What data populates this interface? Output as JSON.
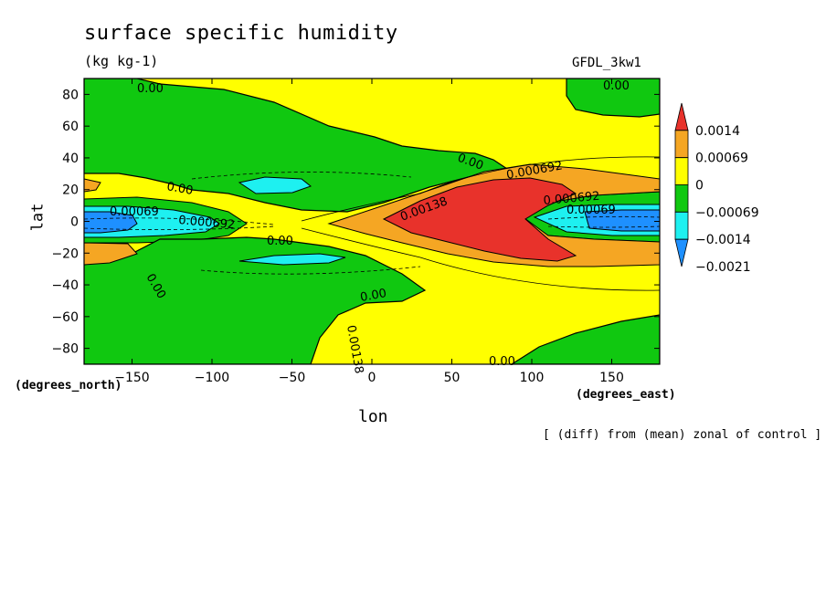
{
  "chart_data": {
    "type": "heatmap",
    "title": "surface specific humidity",
    "units": "(kg kg-1)",
    "model": "GFDL_3kw1",
    "xlabel": "lon",
    "ylabel": "lat",
    "x_units": "(degrees_east)",
    "y_units": "(degrees_north)",
    "note": "[ (diff) from (mean) zonal of control ]",
    "xlim": [
      -180,
      180
    ],
    "ylim": [
      -90,
      90
    ],
    "x_ticks": [
      -150,
      -100,
      -50,
      0,
      50,
      100,
      150
    ],
    "y_ticks": [
      -80,
      -60,
      -40,
      -20,
      0,
      20,
      40,
      60,
      80
    ],
    "grid": false,
    "legend_position": "right",
    "colorbar": {
      "levels": [
        "0.0014",
        "0.00069",
        "0",
        "-0.00069",
        "-0.0014",
        "-0.0021"
      ],
      "colors": [
        "#e8322b",
        "#f5a623",
        "#ffff00",
        "#10c810",
        "#1ef0f0",
        "#1e90ff"
      ]
    },
    "regions": [
      {
        "value_range": "0 to 0.00069",
        "description": "background positive"
      },
      {
        "value_range": "-0.00069 to 0",
        "description": "northern mid-latitudes west and southern ocean"
      },
      {
        "value_range": "> 0.0014",
        "description": "maximum east of 0 lon near 0-20N / 20S"
      },
      {
        "value_range": "< -0.0014",
        "description": "minima near equator at lon -180 and 150"
      }
    ],
    "contour_labels": [
      "0.00",
      "0.00",
      "0.00",
      "0.00",
      "0.00",
      "0.00",
      "0.00",
      "0.00",
      "0.00138",
      "0.00069",
      "0.000692",
      "0.000692",
      "0.00138",
      "0.000692",
      "0.00069"
    ]
  }
}
